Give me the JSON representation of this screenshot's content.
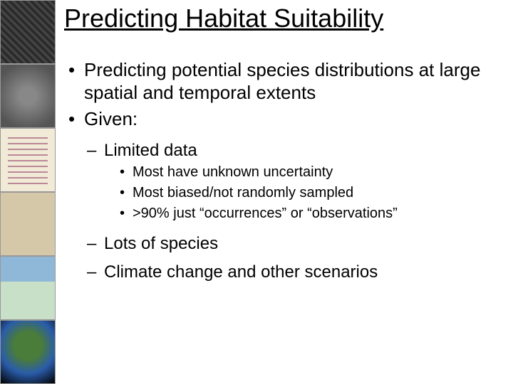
{
  "title": "Predicting Habitat Suitability",
  "bullets": {
    "b1_1": "Predicting potential species distributions at large spatial and temporal extents",
    "b1_2": "Given:",
    "b2_1": "Limited data",
    "b3_1": "Most have unknown uncertainty",
    "b3_2": "Most biased/not randomly sampled",
    "b3_3": ">90% just “occurrences” or “observations”",
    "b2_2": "Lots of species",
    "b2_3": "Climate change and other scenarios"
  },
  "style": {
    "background": "#ffffff",
    "text_color": "#000000",
    "title_fontsize": 36,
    "b1_fontsize": 26,
    "b2_fontsize": 24,
    "b3_fontsize": 20,
    "font_family": "Arial"
  },
  "sidebar": {
    "thumb_count": 6,
    "description": "vertical strip of six map/globe thumbnail images"
  }
}
